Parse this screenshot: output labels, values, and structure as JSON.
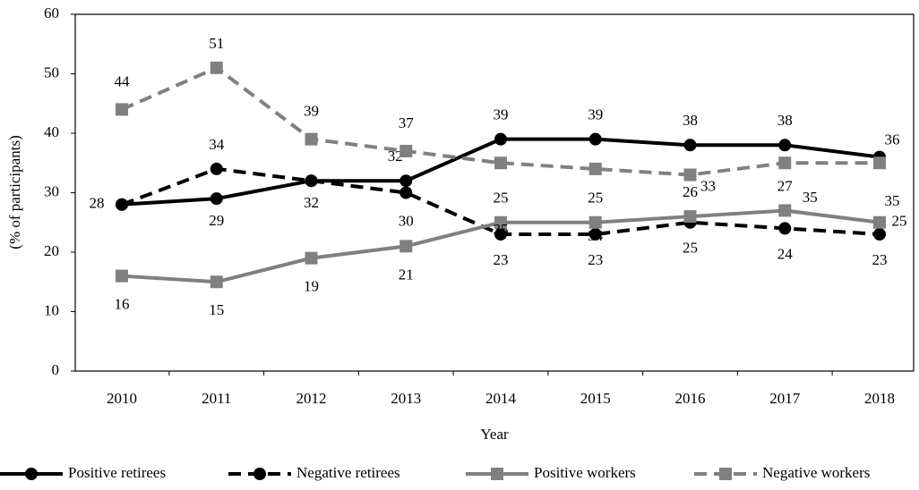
{
  "chart_data": {
    "type": "line",
    "x_label": "Year",
    "y_label": "(% of participants)",
    "categories": [
      "2010",
      "2011",
      "2012",
      "2013",
      "2014",
      "2015",
      "2016",
      "2017",
      "2018"
    ],
    "series": [
      {
        "name": "Positive retirees",
        "color": "#000000",
        "dashed": false,
        "marker": "circle",
        "values": [
          28,
          29,
          32,
          32,
          39,
          39,
          38,
          38,
          36
        ]
      },
      {
        "name": "Negative retirees",
        "color": "#000000",
        "dashed": true,
        "marker": "circle",
        "values": [
          28,
          34,
          32,
          30,
          23,
          23,
          25,
          24,
          23
        ]
      },
      {
        "name": "Positive workers",
        "color": "#808080",
        "dashed": false,
        "marker": "square",
        "values": [
          16,
          15,
          19,
          21,
          25,
          25,
          26,
          27,
          25
        ]
      },
      {
        "name": "Negative workers",
        "color": "#808080",
        "dashed": true,
        "marker": "square",
        "values": [
          44,
          51,
          39,
          37,
          35,
          34,
          33,
          35,
          35
        ]
      }
    ],
    "ylim": [
      0,
      60
    ],
    "yticks": [
      0,
      10,
      20,
      30,
      40,
      50,
      60
    ],
    "grid": false
  }
}
